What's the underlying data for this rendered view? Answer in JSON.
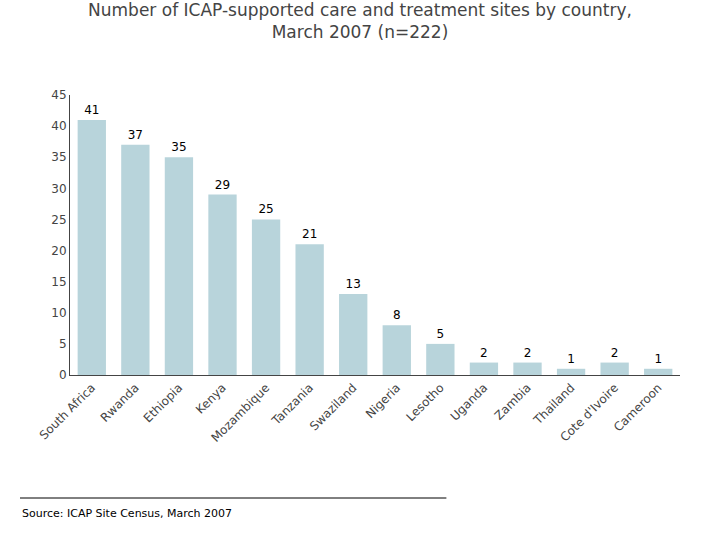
{
  "chart_data": {
    "type": "bar",
    "title": "Number of ICAP-supported care and treatment sites by country,\nMarch 2007 (n=222)",
    "categories": [
      "South Africa",
      "Rwanda",
      "Ethiopia",
      "Kenya",
      "Mozambique",
      "Tanzania",
      "Swaziland",
      "Nigeria",
      "Lesotho",
      "Uganda",
      "Zambia",
      "Thailand",
      "Cote d'Ivoire",
      "Cameroon"
    ],
    "values": [
      41,
      37,
      35,
      29,
      25,
      21,
      13,
      8,
      5,
      2,
      2,
      1,
      2,
      1
    ],
    "color": "#b8d4db",
    "ylim": [
      0,
      45
    ],
    "yticks": [
      0,
      5,
      10,
      15,
      20,
      25,
      30,
      35,
      40,
      45
    ],
    "grid": false,
    "data_labels": true,
    "annotations": [
      "Source: ICAP Site Census, March 2007"
    ]
  }
}
